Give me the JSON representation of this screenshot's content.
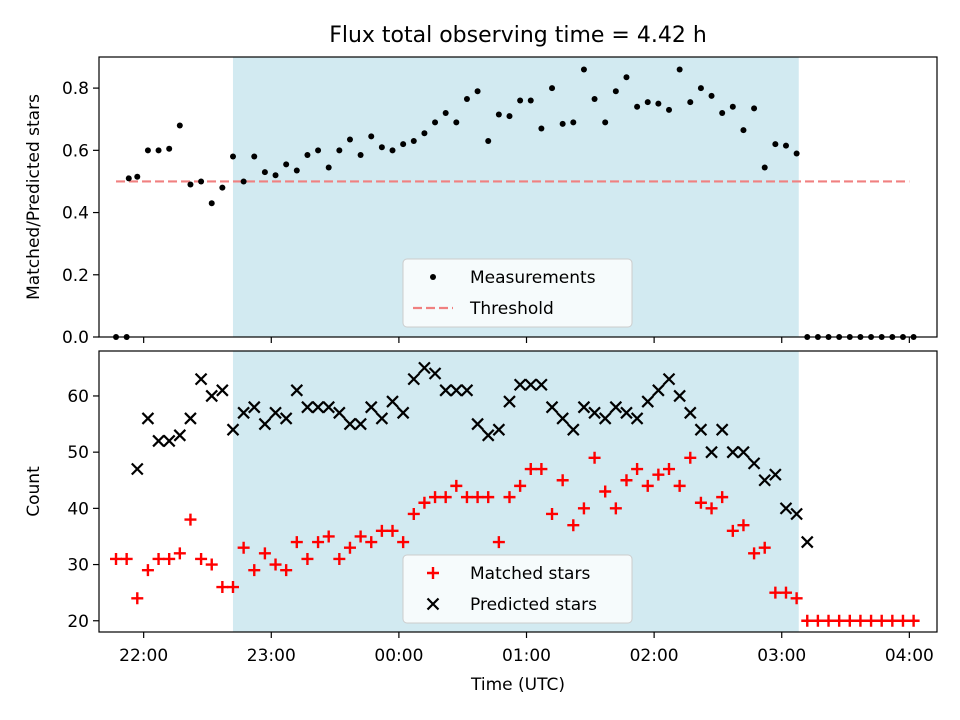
{
  "title": "Flux total observing time = 4.42 h",
  "colors": {
    "shade": "#add8e6",
    "measurement": "#000000",
    "threshold": "#f08080",
    "matched": "#ff0000",
    "predicted": "#000000"
  },
  "chart_data": [
    {
      "type": "scatter",
      "ylabel": "Matched/Predicted stars",
      "ylim": [
        0,
        0.9
      ],
      "yticks": [
        0.0,
        0.2,
        0.4,
        0.6,
        0.8
      ],
      "ytick_labels": [
        "0.0",
        "0.2",
        "0.4",
        "0.6",
        "0.8"
      ],
      "xlim": [
        "21:39",
        "04:13"
      ],
      "shaded_interval": [
        "22:42",
        "03:08"
      ],
      "legend": {
        "position": "lower-center",
        "labels": [
          "Measurements",
          "Threshold"
        ]
      },
      "threshold": {
        "name": "Threshold",
        "value": 0.5,
        "x": [
          "21:47",
          "04:00"
        ],
        "style": "dashed"
      },
      "series": [
        {
          "name": "Measurements",
          "marker": "dot",
          "points": [
            [
              "21:47",
              0.0
            ],
            [
              "21:52",
              0.0
            ],
            [
              "21:53",
              0.51
            ],
            [
              "21:57",
              0.515
            ],
            [
              "22:02",
              0.6
            ],
            [
              "22:07",
              0.6
            ],
            [
              "22:12",
              0.605
            ],
            [
              "22:17",
              0.68
            ],
            [
              "22:22",
              0.49
            ],
            [
              "22:27",
              0.5
            ],
            [
              "22:32",
              0.43
            ],
            [
              "22:37",
              0.48
            ],
            [
              "22:42",
              0.58
            ],
            [
              "22:47",
              0.5
            ],
            [
              "22:52",
              0.58
            ],
            [
              "22:57",
              0.53
            ],
            [
              "23:02",
              0.52
            ],
            [
              "23:07",
              0.555
            ],
            [
              "23:12",
              0.535
            ],
            [
              "23:17",
              0.585
            ],
            [
              "23:22",
              0.6
            ],
            [
              "23:27",
              0.545
            ],
            [
              "23:32",
              0.6
            ],
            [
              "23:37",
              0.635
            ],
            [
              "23:42",
              0.585
            ],
            [
              "23:47",
              0.645
            ],
            [
              "23:52",
              0.61
            ],
            [
              "23:57",
              0.6
            ],
            [
              "00:02",
              0.62
            ],
            [
              "00:07",
              0.63
            ],
            [
              "00:12",
              0.655
            ],
            [
              "00:17",
              0.69
            ],
            [
              "00:22",
              0.72
            ],
            [
              "00:27",
              0.69
            ],
            [
              "00:32",
              0.765
            ],
            [
              "00:37",
              0.79
            ],
            [
              "00:42",
              0.63
            ],
            [
              "00:47",
              0.715
            ],
            [
              "00:52",
              0.71
            ],
            [
              "00:57",
              0.76
            ],
            [
              "01:02",
              0.76
            ],
            [
              "01:07",
              0.67
            ],
            [
              "01:12",
              0.8
            ],
            [
              "01:17",
              0.685
            ],
            [
              "01:22",
              0.69
            ],
            [
              "01:27",
              0.86
            ],
            [
              "01:32",
              0.765
            ],
            [
              "01:37",
              0.69
            ],
            [
              "01:42",
              0.79
            ],
            [
              "01:47",
              0.835
            ],
            [
              "01:52",
              0.74
            ],
            [
              "01:57",
              0.755
            ],
            [
              "02:02",
              0.75
            ],
            [
              "02:07",
              0.73
            ],
            [
              "02:12",
              0.86
            ],
            [
              "02:17",
              0.755
            ],
            [
              "02:22",
              0.8
            ],
            [
              "02:27",
              0.775
            ],
            [
              "02:32",
              0.72
            ],
            [
              "02:37",
              0.74
            ],
            [
              "02:42",
              0.665
            ],
            [
              "02:47",
              0.735
            ],
            [
              "02:52",
              0.545
            ],
            [
              "02:57",
              0.62
            ],
            [
              "03:02",
              0.615
            ],
            [
              "03:07",
              0.59
            ],
            [
              "03:12",
              0.0
            ],
            [
              "03:17",
              0.0
            ],
            [
              "03:22",
              0.0
            ],
            [
              "03:27",
              0.0
            ],
            [
              "03:32",
              0.0
            ],
            [
              "03:37",
              0.0
            ],
            [
              "03:42",
              0.0
            ],
            [
              "03:47",
              0.0
            ],
            [
              "03:52",
              0.0
            ],
            [
              "03:57",
              0.0
            ],
            [
              "04:02",
              0.0
            ]
          ]
        }
      ]
    },
    {
      "type": "scatter",
      "xlabel": "Time (UTC)",
      "ylabel": "Count",
      "ylim": [
        18,
        68
      ],
      "yticks": [
        20,
        30,
        40,
        50,
        60
      ],
      "ytick_labels": [
        "20",
        "30",
        "40",
        "50",
        "60"
      ],
      "xlim": [
        "21:39",
        "04:13"
      ],
      "xticks": [
        "22:00",
        "23:00",
        "00:00",
        "01:00",
        "02:00",
        "03:00",
        "04:00"
      ],
      "xtick_labels": [
        "22:00",
        "23:00",
        "00:00",
        "01:00",
        "02:00",
        "03:00",
        "04:00"
      ],
      "shaded_interval": [
        "22:42",
        "03:08"
      ],
      "legend": {
        "position": "lower-center",
        "labels": [
          "Matched stars",
          "Predicted stars"
        ]
      },
      "series": [
        {
          "name": "Matched stars",
          "marker": "plus",
          "points": [
            [
              "21:47",
              31
            ],
            [
              "21:52",
              31
            ],
            [
              "21:57",
              24
            ],
            [
              "22:02",
              29
            ],
            [
              "22:07",
              31
            ],
            [
              "22:12",
              31
            ],
            [
              "22:17",
              32
            ],
            [
              "22:22",
              38
            ],
            [
              "22:27",
              31
            ],
            [
              "22:32",
              30
            ],
            [
              "22:37",
              26
            ],
            [
              "22:42",
              26
            ],
            [
              "22:47",
              33
            ],
            [
              "22:52",
              29
            ],
            [
              "22:57",
              32
            ],
            [
              "23:02",
              30
            ],
            [
              "23:07",
              29
            ],
            [
              "23:12",
              34
            ],
            [
              "23:17",
              31
            ],
            [
              "23:22",
              34
            ],
            [
              "23:27",
              35
            ],
            [
              "23:32",
              31
            ],
            [
              "23:37",
              33
            ],
            [
              "23:42",
              35
            ],
            [
              "23:47",
              34
            ],
            [
              "23:52",
              36
            ],
            [
              "23:57",
              36
            ],
            [
              "00:02",
              34
            ],
            [
              "00:07",
              39
            ],
            [
              "00:12",
              41
            ],
            [
              "00:17",
              42
            ],
            [
              "00:22",
              42
            ],
            [
              "00:27",
              44
            ],
            [
              "00:32",
              42
            ],
            [
              "00:37",
              42
            ],
            [
              "00:42",
              42
            ],
            [
              "00:47",
              34
            ],
            [
              "00:52",
              42
            ],
            [
              "00:57",
              44
            ],
            [
              "01:02",
              47
            ],
            [
              "01:07",
              47
            ],
            [
              "01:12",
              39
            ],
            [
              "01:17",
              45
            ],
            [
              "01:22",
              37
            ],
            [
              "01:27",
              40
            ],
            [
              "01:32",
              49
            ],
            [
              "01:37",
              43
            ],
            [
              "01:42",
              40
            ],
            [
              "01:47",
              45
            ],
            [
              "01:52",
              47
            ],
            [
              "01:57",
              44
            ],
            [
              "02:02",
              46
            ],
            [
              "02:07",
              47
            ],
            [
              "02:12",
              44
            ],
            [
              "02:17",
              49
            ],
            [
              "02:22",
              41
            ],
            [
              "02:27",
              40
            ],
            [
              "02:32",
              42
            ],
            [
              "02:37",
              36
            ],
            [
              "02:42",
              37
            ],
            [
              "02:47",
              32
            ],
            [
              "02:52",
              33
            ],
            [
              "02:57",
              25
            ],
            [
              "03:02",
              25
            ],
            [
              "03:07",
              24
            ],
            [
              "03:12",
              20
            ],
            [
              "03:17",
              20
            ],
            [
              "03:22",
              20
            ],
            [
              "03:27",
              20
            ],
            [
              "03:32",
              20
            ],
            [
              "03:37",
              20
            ],
            [
              "03:42",
              20
            ],
            [
              "03:47",
              20
            ],
            [
              "03:52",
              20
            ],
            [
              "03:57",
              20
            ],
            [
              "04:02",
              20
            ]
          ]
        },
        {
          "name": "Predicted stars",
          "marker": "x",
          "points": [
            [
              "21:57",
              47
            ],
            [
              "22:02",
              56
            ],
            [
              "22:07",
              52
            ],
            [
              "22:12",
              52
            ],
            [
              "22:17",
              53
            ],
            [
              "22:22",
              56
            ],
            [
              "22:27",
              63
            ],
            [
              "22:32",
              60
            ],
            [
              "22:37",
              61
            ],
            [
              "22:42",
              54
            ],
            [
              "22:47",
              57
            ],
            [
              "22:52",
              58
            ],
            [
              "22:57",
              55
            ],
            [
              "23:02",
              57
            ],
            [
              "23:07",
              56
            ],
            [
              "23:12",
              61
            ],
            [
              "23:17",
              58
            ],
            [
              "23:22",
              58
            ],
            [
              "23:27",
              58
            ],
            [
              "23:32",
              57
            ],
            [
              "23:37",
              55
            ],
            [
              "23:42",
              55
            ],
            [
              "23:47",
              58
            ],
            [
              "23:52",
              56
            ],
            [
              "23:57",
              59
            ],
            [
              "00:02",
              57
            ],
            [
              "00:07",
              63
            ],
            [
              "00:12",
              65
            ],
            [
              "00:17",
              64
            ],
            [
              "00:22",
              61
            ],
            [
              "00:27",
              61
            ],
            [
              "00:32",
              61
            ],
            [
              "00:37",
              55
            ],
            [
              "00:42",
              53
            ],
            [
              "00:47",
              54
            ],
            [
              "00:52",
              59
            ],
            [
              "00:57",
              62
            ],
            [
              "01:02",
              62
            ],
            [
              "01:07",
              62
            ],
            [
              "01:12",
              58
            ],
            [
              "01:17",
              56
            ],
            [
              "01:22",
              54
            ],
            [
              "01:27",
              58
            ],
            [
              "01:32",
              57
            ],
            [
              "01:37",
              56
            ],
            [
              "01:42",
              58
            ],
            [
              "01:47",
              57
            ],
            [
              "01:52",
              56
            ],
            [
              "01:57",
              59
            ],
            [
              "02:02",
              61
            ],
            [
              "02:07",
              63
            ],
            [
              "02:12",
              60
            ],
            [
              "02:17",
              57
            ],
            [
              "02:22",
              54
            ],
            [
              "02:27",
              50
            ],
            [
              "02:32",
              54
            ],
            [
              "02:37",
              50
            ],
            [
              "02:42",
              50
            ],
            [
              "02:47",
              48
            ],
            [
              "02:52",
              45
            ],
            [
              "02:57",
              46
            ],
            [
              "03:02",
              40
            ],
            [
              "03:07",
              39
            ],
            [
              "03:12",
              34
            ]
          ]
        }
      ]
    }
  ]
}
